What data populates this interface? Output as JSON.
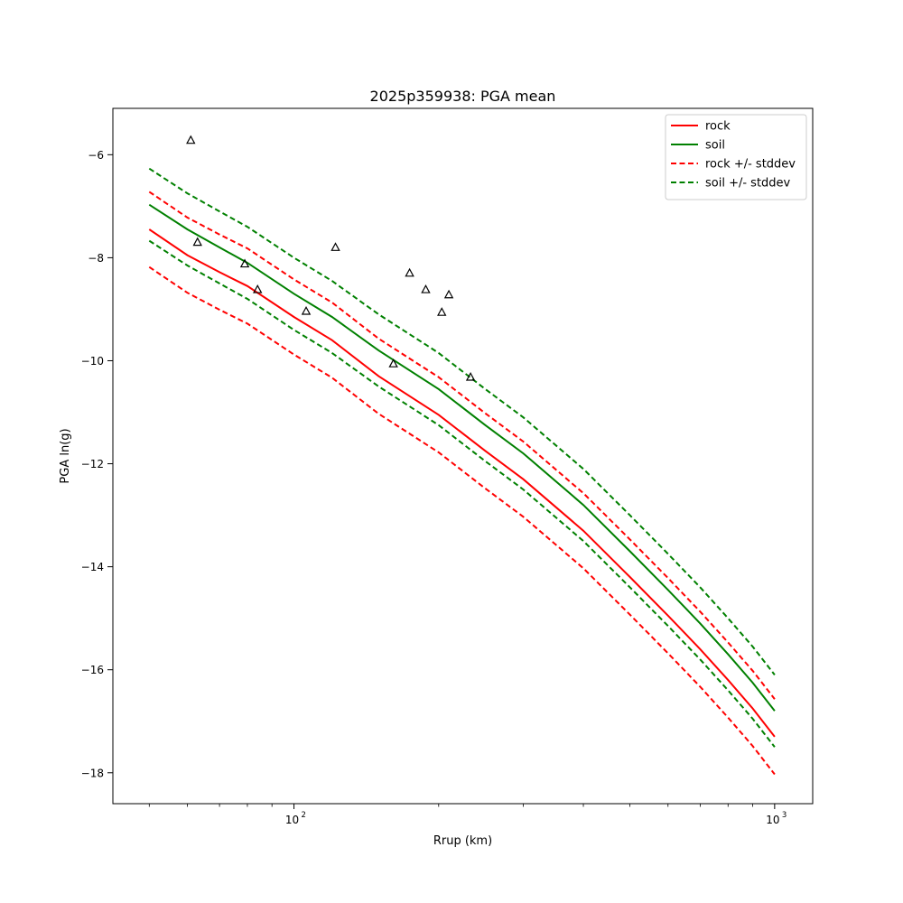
{
  "chart_data": {
    "type": "line",
    "title": "2025p359938: PGA mean",
    "xlabel": "Rrup (km)",
    "ylabel": "PGA ln(g)",
    "x_scale": "log",
    "xlim": [
      42,
      1200
    ],
    "ylim": [
      -18.6,
      -5.1
    ],
    "x_ticks": [
      100,
      1000
    ],
    "x_tick_labels": [
      "10",
      "10"
    ],
    "x_tick_exponents": [
      "2",
      "3"
    ],
    "y_ticks": [
      -6,
      -8,
      -10,
      -12,
      -14,
      -16,
      -18
    ],
    "y_tick_labels": [
      "−6",
      "−8",
      "−10",
      "−12",
      "−14",
      "−16",
      "−18"
    ],
    "grid": false,
    "legend_position": "top-right",
    "series": [
      {
        "name": "rock",
        "color": "#ff0000",
        "dash": "solid",
        "x": [
          50,
          60,
          70,
          80,
          100,
          120,
          150,
          200,
          250,
          300,
          400,
          500,
          600,
          700,
          800,
          900,
          1000
        ],
        "y": [
          -7.45,
          -7.95,
          -8.28,
          -8.55,
          -9.15,
          -9.6,
          -10.3,
          -11.05,
          -11.75,
          -12.3,
          -13.3,
          -14.2,
          -14.95,
          -15.6,
          -16.2,
          -16.75,
          -17.3
        ]
      },
      {
        "name": "soil",
        "color": "#008000",
        "dash": "solid",
        "x": [
          50,
          60,
          70,
          80,
          100,
          120,
          150,
          200,
          250,
          300,
          400,
          500,
          600,
          700,
          800,
          900,
          1000
        ],
        "y": [
          -6.97,
          -7.45,
          -7.8,
          -8.1,
          -8.7,
          -9.15,
          -9.8,
          -10.55,
          -11.25,
          -11.8,
          -12.8,
          -13.7,
          -14.45,
          -15.1,
          -15.7,
          -16.25,
          -16.8
        ]
      },
      {
        "name": "rock +/- stddev",
        "color": "#ff0000",
        "dash": "dashed",
        "x": [
          50,
          60,
          70,
          80,
          100,
          120,
          150,
          200,
          250,
          300,
          400,
          500,
          600,
          700,
          800,
          900,
          1000
        ],
        "y": [
          -6.72,
          -7.22,
          -7.55,
          -7.82,
          -8.42,
          -8.87,
          -9.57,
          -10.32,
          -11.02,
          -11.57,
          -12.57,
          -13.47,
          -14.22,
          -14.87,
          -15.47,
          -16.02,
          -16.57
        ]
      },
      {
        "name": "",
        "color": "#ff0000",
        "dash": "dashed",
        "x": [
          50,
          60,
          70,
          80,
          100,
          120,
          150,
          200,
          250,
          300,
          400,
          500,
          600,
          700,
          800,
          900,
          1000
        ],
        "y": [
          -8.18,
          -8.68,
          -9.01,
          -9.28,
          -9.88,
          -10.33,
          -11.03,
          -11.78,
          -12.48,
          -13.03,
          -14.03,
          -14.93,
          -15.68,
          -16.33,
          -16.93,
          -17.48,
          -18.03
        ]
      },
      {
        "name": "soil +/- stddev",
        "color": "#008000",
        "dash": "dashed",
        "x": [
          50,
          60,
          70,
          80,
          100,
          120,
          150,
          200,
          250,
          300,
          400,
          500,
          600,
          700,
          800,
          900,
          1000
        ],
        "y": [
          -6.27,
          -6.75,
          -7.1,
          -7.4,
          -8.0,
          -8.45,
          -9.1,
          -9.85,
          -10.55,
          -11.1,
          -12.1,
          -13.0,
          -13.75,
          -14.4,
          -15.0,
          -15.55,
          -16.1
        ]
      },
      {
        "name": "",
        "color": "#008000",
        "dash": "dashed",
        "x": [
          50,
          60,
          70,
          80,
          100,
          120,
          150,
          200,
          250,
          300,
          400,
          500,
          600,
          700,
          800,
          900,
          1000
        ],
        "y": [
          -7.67,
          -8.15,
          -8.5,
          -8.8,
          -9.4,
          -9.85,
          -10.5,
          -11.25,
          -11.95,
          -12.5,
          -13.5,
          -14.4,
          -15.15,
          -15.8,
          -16.4,
          -16.95,
          -17.5
        ]
      }
    ],
    "observations": {
      "marker": "triangle",
      "color": "#000000",
      "x": [
        61,
        63,
        79,
        84,
        106,
        122,
        161,
        174,
        188,
        203,
        210,
        233
      ],
      "y": [
        -5.72,
        -7.7,
        -8.12,
        -8.62,
        -9.04,
        -7.8,
        -10.06,
        -8.3,
        -8.62,
        -9.06,
        -8.72,
        -10.32
      ]
    }
  }
}
